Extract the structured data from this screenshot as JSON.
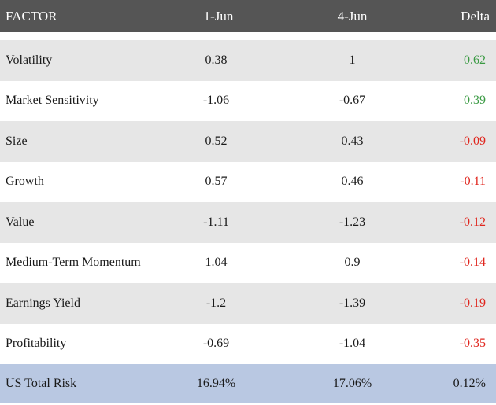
{
  "header": {
    "factor": "FACTOR",
    "date1": "1-Jun",
    "date2": "4-Jun",
    "delta": "Delta"
  },
  "colors": {
    "header_bg": "#555555",
    "stripe_bg": "#e6e6e6",
    "total_bg": "#b9c8e2",
    "positive": "#3a9a43",
    "negative": "#e0261e"
  },
  "rows": [
    {
      "factor": "Volatility",
      "date1": "0.38",
      "date2": "1",
      "delta": "0.62",
      "sign": "positive"
    },
    {
      "factor": "Market Sensitivity",
      "date1": "-1.06",
      "date2": "-0.67",
      "delta": "0.39",
      "sign": "positive"
    },
    {
      "factor": "Size",
      "date1": "0.52",
      "date2": "0.43",
      "delta": "-0.09",
      "sign": "negative"
    },
    {
      "factor": "Growth",
      "date1": "0.57",
      "date2": "0.46",
      "delta": "-0.11",
      "sign": "negative"
    },
    {
      "factor": "Value",
      "date1": "-1.11",
      "date2": "-1.23",
      "delta": "-0.12",
      "sign": "negative"
    },
    {
      "factor": "Medium-Term Momentum",
      "date1": "1.04",
      "date2": "0.9",
      "delta": "-0.14",
      "sign": "negative"
    },
    {
      "factor": "Earnings Yield",
      "date1": "-1.2",
      "date2": "-1.39",
      "delta": "-0.19",
      "sign": "negative"
    },
    {
      "factor": "Profitability",
      "date1": "-0.69",
      "date2": "-1.04",
      "delta": "-0.35",
      "sign": "negative"
    }
  ],
  "total": {
    "factor": "US Total Risk",
    "date1": "16.94%",
    "date2": "17.06%",
    "delta": "0.12%"
  }
}
